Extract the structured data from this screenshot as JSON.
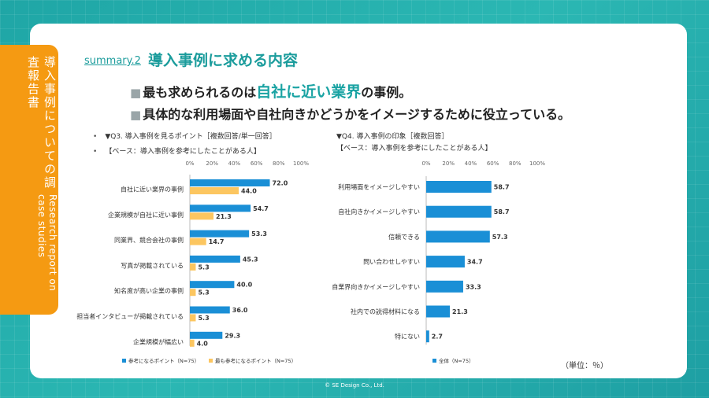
{
  "side_tab": {
    "title_jp": "導入事例についての調査報告書",
    "title_en": "Research report on case studies"
  },
  "header": {
    "summary_label": "summary.2",
    "title": "導入事例に求める内容"
  },
  "bullets": {
    "line1_prefix": "最も求められるのは",
    "line1_highlight": "自社に近い業界",
    "line1_suffix": "の事例。",
    "line2": "具体的な利用場面や自社向きかどうかをイメージするために役立っている。",
    "marker": "■"
  },
  "chart_titles": {
    "left_q": "▼Q3. 導入事例を見るポイント［複数回答/単一回答］",
    "left_base": "【ベース：導入事例を参考にしたことがある人】",
    "right_q": "▼Q4. 導入事例の印象［複数回答］",
    "right_base": "【ベース：導入事例を参考にしたことがある人】",
    "bullet_mark": "•"
  },
  "unit_note": "（単位：％）",
  "copyright": "© SE Design Co., Ltd.",
  "colors": {
    "series_blue": "#1a8fd6",
    "series_yellow": "#fcc660",
    "accent": "#1aa3a3",
    "orange": "#f59a12"
  },
  "chart_data": [
    {
      "type": "bar",
      "orientation": "horizontal",
      "title": "▼Q3. 導入事例を見るポイント［複数回答/単一回答］",
      "tick_labels": [
        "0%",
        "20%",
        "40%",
        "60%",
        "80%",
        "100%"
      ],
      "xlim": [
        0,
        100
      ],
      "categories": [
        "自社に近い業界の事例",
        "企業規模が自社に近い事例",
        "同業界、競合会社の事例",
        "写真が掲載されている",
        "知名度が高い企業の事例",
        "担当者インタビューが掲載されている",
        "企業規模が幅広い"
      ],
      "series": [
        {
          "name": "参考になるポイント（N=75）",
          "values": [
            72.0,
            54.7,
            53.3,
            45.3,
            40.0,
            36.0,
            29.3
          ]
        },
        {
          "name": "最も参考になるポイント（N=75）",
          "values": [
            44.0,
            21.3,
            14.7,
            5.3,
            5.3,
            5.3,
            4.0
          ]
        }
      ],
      "value_labels": [
        [
          "72.0",
          "54.7",
          "53.3",
          "45.3",
          "40.0",
          "36.0",
          "29.3"
        ],
        [
          "44.0",
          "21.3",
          "14.7",
          "5.3",
          "5.3",
          "5.3",
          "4.0"
        ]
      ]
    },
    {
      "type": "bar",
      "orientation": "horizontal",
      "title": "▼Q4. 導入事例の印象［複数回答］",
      "tick_labels": [
        "0%",
        "20%",
        "40%",
        "60%",
        "80%",
        "100%"
      ],
      "xlim": [
        0,
        100
      ],
      "categories": [
        "利用場面をイメージしやすい",
        "自社向きかイメージしやすい",
        "信頼できる",
        "問い合わせしやすい",
        "自業界向きかイメージしやすい",
        "社内での説得材料になる",
        "特にない"
      ],
      "series": [
        {
          "name": "全体（N=75）",
          "values": [
            58.7,
            58.7,
            57.3,
            34.7,
            33.3,
            21.3,
            2.7
          ]
        }
      ],
      "value_labels": [
        [
          "58.7",
          "58.7",
          "57.3",
          "34.7",
          "33.3",
          "21.3",
          "2.7"
        ]
      ]
    }
  ]
}
